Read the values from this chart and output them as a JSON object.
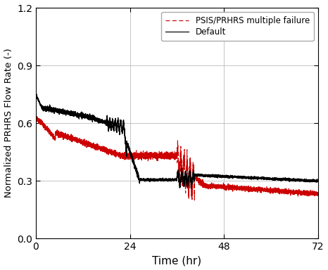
{
  "title": "",
  "xlabel": "Time (hr)",
  "ylabel": "Normalized PRHRS Flow Rate (-)",
  "xlim": [
    0,
    72
  ],
  "ylim": [
    0.0,
    1.2
  ],
  "yticks": [
    0.0,
    0.3,
    0.6,
    0.9,
    1.2
  ],
  "xticks": [
    0,
    24,
    48,
    72
  ],
  "legend": {
    "default_label": "Default",
    "failure_label": "PSIS/PRHRS multiple failure",
    "default_color": "#000000",
    "failure_color": "#cc0000"
  },
  "grid_color": "#bbbbbb",
  "background_color": "#ffffff"
}
